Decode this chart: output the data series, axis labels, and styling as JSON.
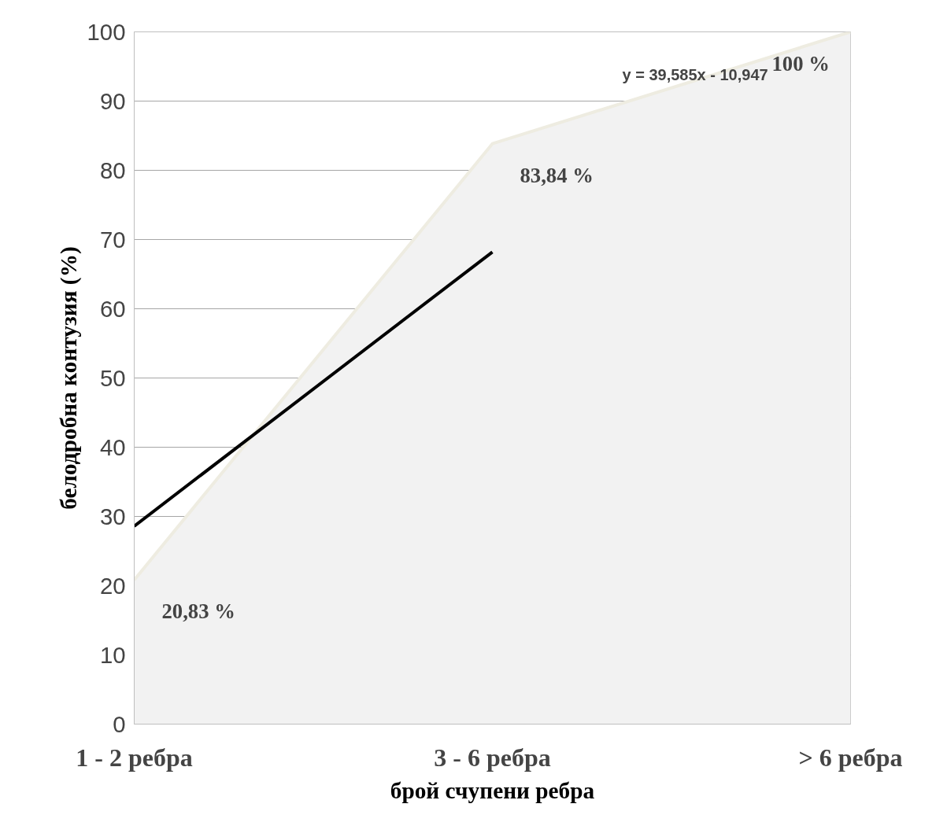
{
  "chart_data": {
    "type": "area",
    "xlabel": "брой счупени ребра",
    "ylabel": "белодробна контузия (%)",
    "categories": [
      "1 - 2 ребра",
      "3 - 6 ребра",
      "> 6 ребра"
    ],
    "series": [
      {
        "color": "#f2f2f2",
        "values": [
          20.83,
          83.84,
          100
        ],
        "value_labels": [
          "20,83 %",
          "83,84 %",
          "100 %"
        ]
      },
      {
        "type": "line",
        "color": "#000000",
        "values": [
          28.6,
          68.2,
          null
        ]
      }
    ],
    "annotations": [
      "y = 39,585x - 10,947"
    ],
    "ylim": [
      0,
      100
    ],
    "yticks": [
      0,
      10,
      20,
      30,
      40,
      50,
      60,
      70,
      80,
      90,
      100
    ],
    "grid": "y"
  }
}
